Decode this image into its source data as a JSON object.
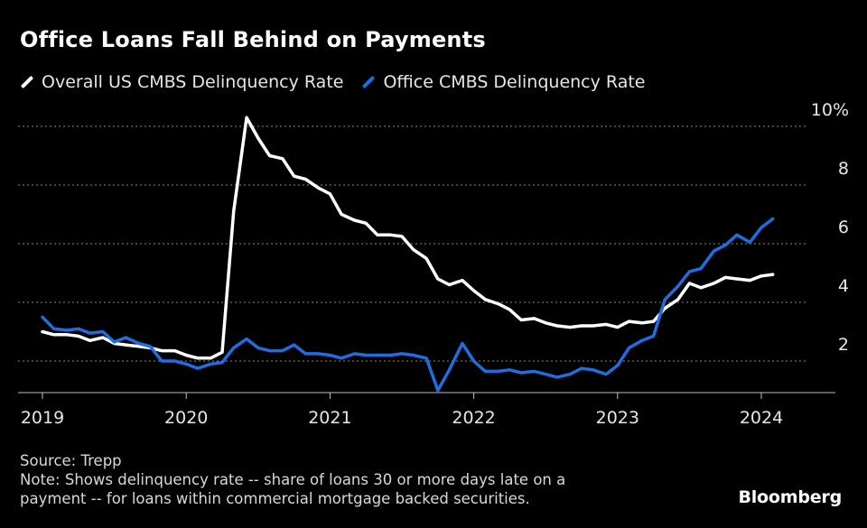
{
  "title": "Office Loans Fall Behind on Payments",
  "footer": {
    "source": "Source: Trepp",
    "note_line1": "Note: Shows delinquency rate -- share of loans 30 or more days late on a",
    "note_line2": "payment -- for loans within commercial mortgage backed securities."
  },
  "brand": "Bloomberg",
  "colors": {
    "overall": "#ffffff",
    "office": "#1f6de0",
    "grid": "#8a8a8a",
    "axis": "#bdbdbd"
  },
  "chart_data": {
    "type": "line",
    "title": "Office Loans Fall Behind on Payments",
    "xlabel": "",
    "ylabel": "",
    "ylim": [
      0.8,
      10.5
    ],
    "yticks": [
      2,
      4,
      6,
      8,
      10
    ],
    "ytick_labels": [
      "2",
      "4",
      "6",
      "8",
      "10%"
    ],
    "xticks": [
      2019,
      2020,
      2021,
      2022,
      2023,
      2024
    ],
    "xtick_labels": [
      "2019",
      "2020",
      "2021",
      "2022",
      "2023",
      "2024"
    ],
    "xlim": [
      2019,
      2024.55
    ],
    "grid": "horizontal dotted",
    "legend_position": "top-left",
    "series": [
      {
        "name": "Overall US CMBS Delinquency Rate",
        "color": "#ffffff",
        "x": [
          2019.0,
          2019.08,
          2019.17,
          2019.25,
          2019.33,
          2019.42,
          2019.5,
          2019.58,
          2019.67,
          2019.75,
          2019.83,
          2019.92,
          2020.0,
          2020.08,
          2020.17,
          2020.25,
          2020.33,
          2020.42,
          2020.5,
          2020.58,
          2020.67,
          2020.75,
          2020.83,
          2020.92,
          2021.0,
          2021.08,
          2021.17,
          2021.25,
          2021.33,
          2021.42,
          2021.5,
          2021.58,
          2021.67,
          2021.75,
          2021.83,
          2021.92,
          2022.0,
          2022.08,
          2022.17,
          2022.25,
          2022.33,
          2022.42,
          2022.5,
          2022.58,
          2022.67,
          2022.75,
          2022.83,
          2022.92,
          2023.0,
          2023.08,
          2023.17,
          2023.25,
          2023.33,
          2023.42,
          2023.5,
          2023.58,
          2023.67,
          2023.75,
          2023.83,
          2023.92,
          2024.0,
          2024.08
        ],
        "values": [
          3.0,
          2.9,
          2.9,
          2.85,
          2.7,
          2.8,
          2.6,
          2.55,
          2.5,
          2.45,
          2.35,
          2.35,
          2.2,
          2.1,
          2.1,
          2.3,
          7.1,
          10.3,
          9.6,
          9.0,
          8.9,
          8.3,
          8.2,
          7.9,
          7.7,
          7.0,
          6.8,
          6.7,
          6.3,
          6.3,
          6.25,
          5.8,
          5.5,
          4.8,
          4.6,
          4.75,
          4.4,
          4.1,
          3.95,
          3.75,
          3.4,
          3.45,
          3.3,
          3.2,
          3.15,
          3.2,
          3.2,
          3.25,
          3.15,
          3.35,
          3.3,
          3.35,
          3.8,
          4.1,
          4.65,
          4.5,
          4.65,
          4.85,
          4.8,
          4.75,
          4.9,
          4.95
        ]
      },
      {
        "name": "Office CMBS Delinquency Rate",
        "color": "#1f6de0",
        "x": [
          2019.0,
          2019.08,
          2019.17,
          2019.25,
          2019.33,
          2019.42,
          2019.5,
          2019.58,
          2019.67,
          2019.75,
          2019.83,
          2019.92,
          2020.0,
          2020.08,
          2020.17,
          2020.25,
          2020.33,
          2020.42,
          2020.5,
          2020.58,
          2020.67,
          2020.75,
          2020.83,
          2020.92,
          2021.0,
          2021.08,
          2021.17,
          2021.25,
          2021.33,
          2021.42,
          2021.5,
          2021.58,
          2021.67,
          2021.75,
          2021.83,
          2021.92,
          2022.0,
          2022.08,
          2022.17,
          2022.25,
          2022.33,
          2022.42,
          2022.5,
          2022.58,
          2022.67,
          2022.75,
          2022.83,
          2022.92,
          2023.0,
          2023.08,
          2023.17,
          2023.25,
          2023.33,
          2023.42,
          2023.5,
          2023.58,
          2023.67,
          2023.75,
          2023.83,
          2023.92,
          2024.0,
          2024.08
        ],
        "values": [
          3.5,
          3.1,
          3.05,
          3.1,
          2.95,
          3.0,
          2.65,
          2.8,
          2.6,
          2.5,
          2.0,
          2.0,
          1.9,
          1.75,
          1.9,
          1.95,
          2.45,
          2.75,
          2.45,
          2.35,
          2.35,
          2.55,
          2.25,
          2.25,
          2.2,
          2.1,
          2.25,
          2.2,
          2.2,
          2.2,
          2.25,
          2.2,
          2.1,
          1.0,
          1.7,
          2.6,
          2.0,
          1.65,
          1.65,
          1.7,
          1.6,
          1.65,
          1.55,
          1.45,
          1.55,
          1.75,
          1.7,
          1.55,
          1.85,
          2.45,
          2.7,
          2.85,
          4.1,
          4.55,
          5.05,
          5.15,
          5.75,
          5.95,
          6.3,
          6.05,
          6.55,
          6.85
        ]
      }
    ]
  }
}
